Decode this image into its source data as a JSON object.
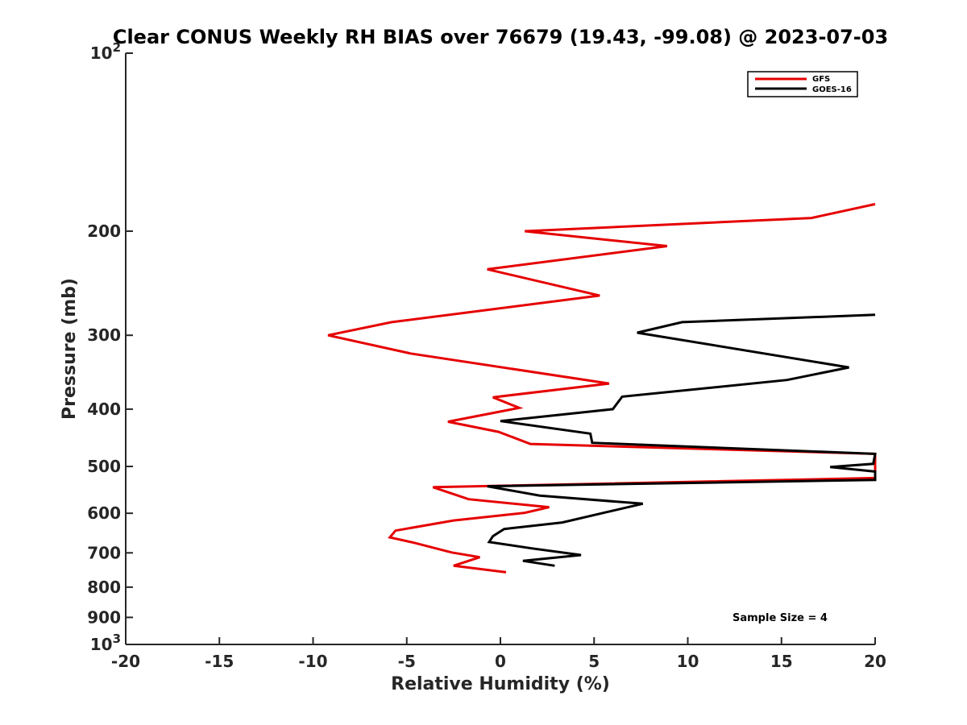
{
  "chart_data": {
    "type": "line",
    "title": "Clear CONUS Weekly RH BIAS over 76679 (19.43, -99.08) @ 2023-07-03",
    "xlabel": "Relative Humidity (%)",
    "ylabel": "Pressure (mb)",
    "xlim": [
      -20,
      20
    ],
    "ylim": [
      100,
      1000
    ],
    "y_scale": "log",
    "y_reversed": true,
    "x_ticks": [
      "-20",
      "-15",
      "-10",
      "-5",
      "0",
      "5",
      "10",
      "15",
      "20"
    ],
    "y_ticks": [
      {
        "value": 100,
        "base": "10",
        "exp": "2"
      },
      {
        "value": 200,
        "label": "200"
      },
      {
        "value": 300,
        "label": "300"
      },
      {
        "value": 400,
        "label": "400"
      },
      {
        "value": 500,
        "label": "500"
      },
      {
        "value": 600,
        "label": "600"
      },
      {
        "value": 700,
        "label": "700"
      },
      {
        "value": 800,
        "label": "800"
      },
      {
        "value": 900,
        "label": "900"
      },
      {
        "value": 1000,
        "base": "10",
        "exp": "3"
      }
    ],
    "grid": false,
    "legend_position": "top-right",
    "series": [
      {
        "name": "GFS",
        "color": "#e60000",
        "points": [
          [
            20.0,
            180
          ],
          [
            16.6,
            190
          ],
          [
            1.3,
            200
          ],
          [
            8.9,
            212
          ],
          [
            -0.7,
            232
          ],
          [
            5.3,
            257
          ],
          [
            -5.8,
            285
          ],
          [
            -9.2,
            300
          ],
          [
            -4.8,
            322
          ],
          [
            5.8,
            362
          ],
          [
            -0.4,
            382
          ],
          [
            1.0,
            398
          ],
          [
            -2.8,
            420
          ],
          [
            -0.1,
            437
          ],
          [
            1.6,
            458
          ],
          [
            20.0,
            476
          ],
          [
            20.0,
            523
          ],
          [
            -3.6,
            542
          ],
          [
            -1.7,
            568
          ],
          [
            2.6,
            586
          ],
          [
            1.3,
            599
          ],
          [
            -2.5,
            617
          ],
          [
            -5.6,
            642
          ],
          [
            -5.9,
            659
          ],
          [
            -4.6,
            673
          ],
          [
            -2.6,
            699
          ],
          [
            -1.1,
            712
          ],
          [
            -2.5,
            736
          ],
          [
            0.3,
            755
          ]
        ]
      },
      {
        "name": "GOES-16",
        "color": "#000000",
        "points": [
          [
            20.0,
            277
          ],
          [
            9.7,
            285
          ],
          [
            7.3,
            297
          ],
          [
            18.6,
            340
          ],
          [
            15.3,
            357
          ],
          [
            6.5,
            381
          ],
          [
            6.0,
            400
          ],
          [
            0.0,
            419
          ],
          [
            4.8,
            440
          ],
          [
            4.9,
            456
          ],
          [
            20.0,
            476
          ],
          [
            19.9,
            495
          ],
          [
            17.6,
            501
          ],
          [
            20.0,
            510
          ],
          [
            20.0,
            527
          ],
          [
            -0.7,
            540
          ],
          [
            2.1,
            560
          ],
          [
            7.6,
            578
          ],
          [
            5.7,
            597
          ],
          [
            3.3,
            622
          ],
          [
            0.2,
            638
          ],
          [
            -0.4,
            656
          ],
          [
            -0.6,
            671
          ],
          [
            1.7,
            688
          ],
          [
            4.3,
            706
          ],
          [
            1.2,
            722
          ],
          [
            2.9,
            736
          ]
        ]
      }
    ],
    "annotations": [
      {
        "text": "Sample Size = 4",
        "position": "bottom-right"
      }
    ]
  }
}
